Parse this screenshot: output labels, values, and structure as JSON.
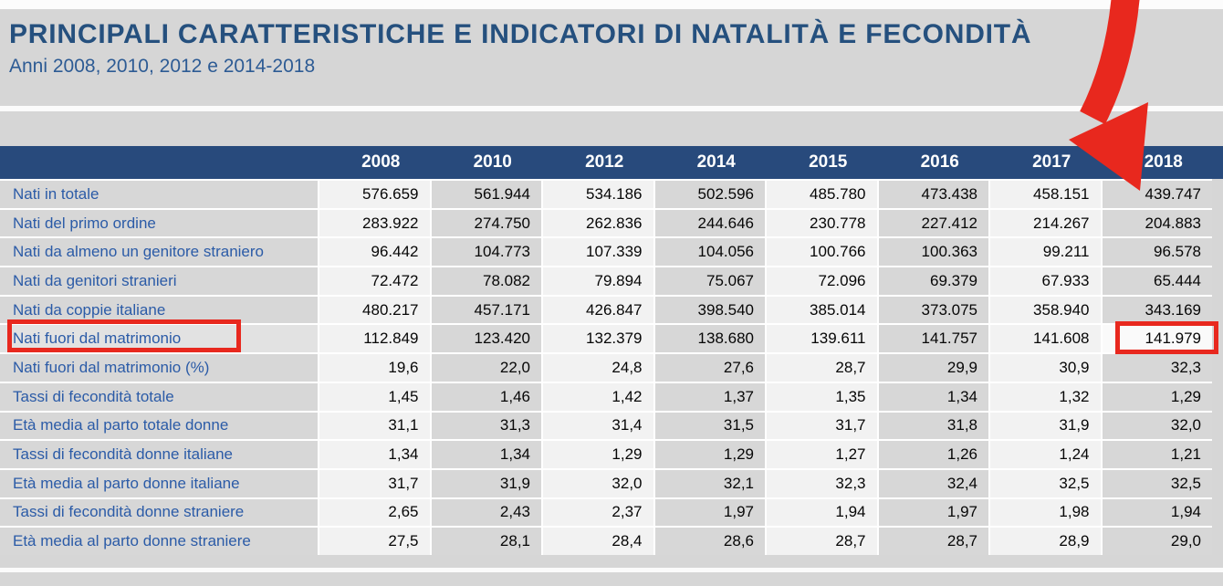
{
  "page": {
    "title": "PRINCIPALI CARATTERISTICHE E INDICATORI DI NATALITÀ E FECONDITÀ",
    "subtitle": "Anni 2008, 2010, 2012 e 2014-2018"
  },
  "table": {
    "columns": [
      "2008",
      "2010",
      "2012",
      "2014",
      "2015",
      "2016",
      "2017",
      "2018"
    ],
    "rows": [
      {
        "label": "Nati in totale",
        "values": [
          "576.659",
          "561.944",
          "534.186",
          "502.596",
          "485.780",
          "473.438",
          "458.151",
          "439.747"
        ]
      },
      {
        "label": "Nati del primo ordine",
        "values": [
          "283.922",
          "274.750",
          "262.836",
          "244.646",
          "230.778",
          "227.412",
          "214.267",
          "204.883"
        ]
      },
      {
        "label": "Nati da almeno un genitore straniero",
        "values": [
          "96.442",
          "104.773",
          "107.339",
          "104.056",
          "100.766",
          "100.363",
          "99.211",
          "96.578"
        ]
      },
      {
        "label": "Nati da genitori stranieri",
        "values": [
          "72.472",
          "78.082",
          "79.894",
          "75.067",
          "72.096",
          "69.379",
          "67.933",
          "65.444"
        ]
      },
      {
        "label": "Nati da coppie italiane",
        "values": [
          "480.217",
          "457.171",
          "426.847",
          "398.540",
          "385.014",
          "373.075",
          "358.940",
          "343.169"
        ]
      },
      {
        "label": "Nati fuori dal matrimonio",
        "highlighted": true,
        "values": [
          "112.849",
          "123.420",
          "132.379",
          "138.680",
          "139.611",
          "141.757",
          "141.608",
          "141.979"
        ]
      },
      {
        "label": "Nati fuori dal matrimonio (%)",
        "values": [
          "19,6",
          "22,0",
          "24,8",
          "27,6",
          "28,7",
          "29,9",
          "30,9",
          "32,3"
        ]
      },
      {
        "label": "Tassi di fecondità totale",
        "values": [
          "1,45",
          "1,46",
          "1,42",
          "1,37",
          "1,35",
          "1,34",
          "1,32",
          "1,29"
        ]
      },
      {
        "label": "Età media al parto totale donne",
        "values": [
          "31,1",
          "31,3",
          "31,4",
          "31,5",
          "31,7",
          "31,8",
          "31,9",
          "32,0"
        ]
      },
      {
        "label": "Tassi di fecondità donne italiane",
        "values": [
          "1,34",
          "1,34",
          "1,29",
          "1,29",
          "1,27",
          "1,26",
          "1,24",
          "1,21"
        ]
      },
      {
        "label": "Età media al parto donne italiane",
        "values": [
          "31,7",
          "31,9",
          "32,0",
          "32,1",
          "32,3",
          "32,4",
          "32,5",
          "32,5"
        ]
      },
      {
        "label": "Tassi di fecondità donne straniere",
        "values": [
          "2,65",
          "2,43",
          "2,37",
          "1,97",
          "1,94",
          "1,97",
          "1,98",
          "1,94"
        ]
      },
      {
        "label": "Età media al parto donne straniere",
        "values": [
          "27,5",
          "28,1",
          "28,4",
          "28,6",
          "28,7",
          "28,7",
          "28,9",
          "29,0"
        ]
      }
    ]
  },
  "annotations": {
    "highlighted_row_label": "Nati fuori dal matrimonio",
    "highlighted_value": "141.979",
    "highlighted_column": "2018",
    "annotation_red": "#e8281e"
  },
  "colors": {
    "page_background": "#d6d6d6",
    "header_bar_blue": "#284a7c",
    "title_blue": "#25507e",
    "row_label_blue": "#2b5ba7",
    "cell_light": "#f2f2f2",
    "cell_dark": "#d7d7d7",
    "annotation_red": "#e8281e"
  }
}
